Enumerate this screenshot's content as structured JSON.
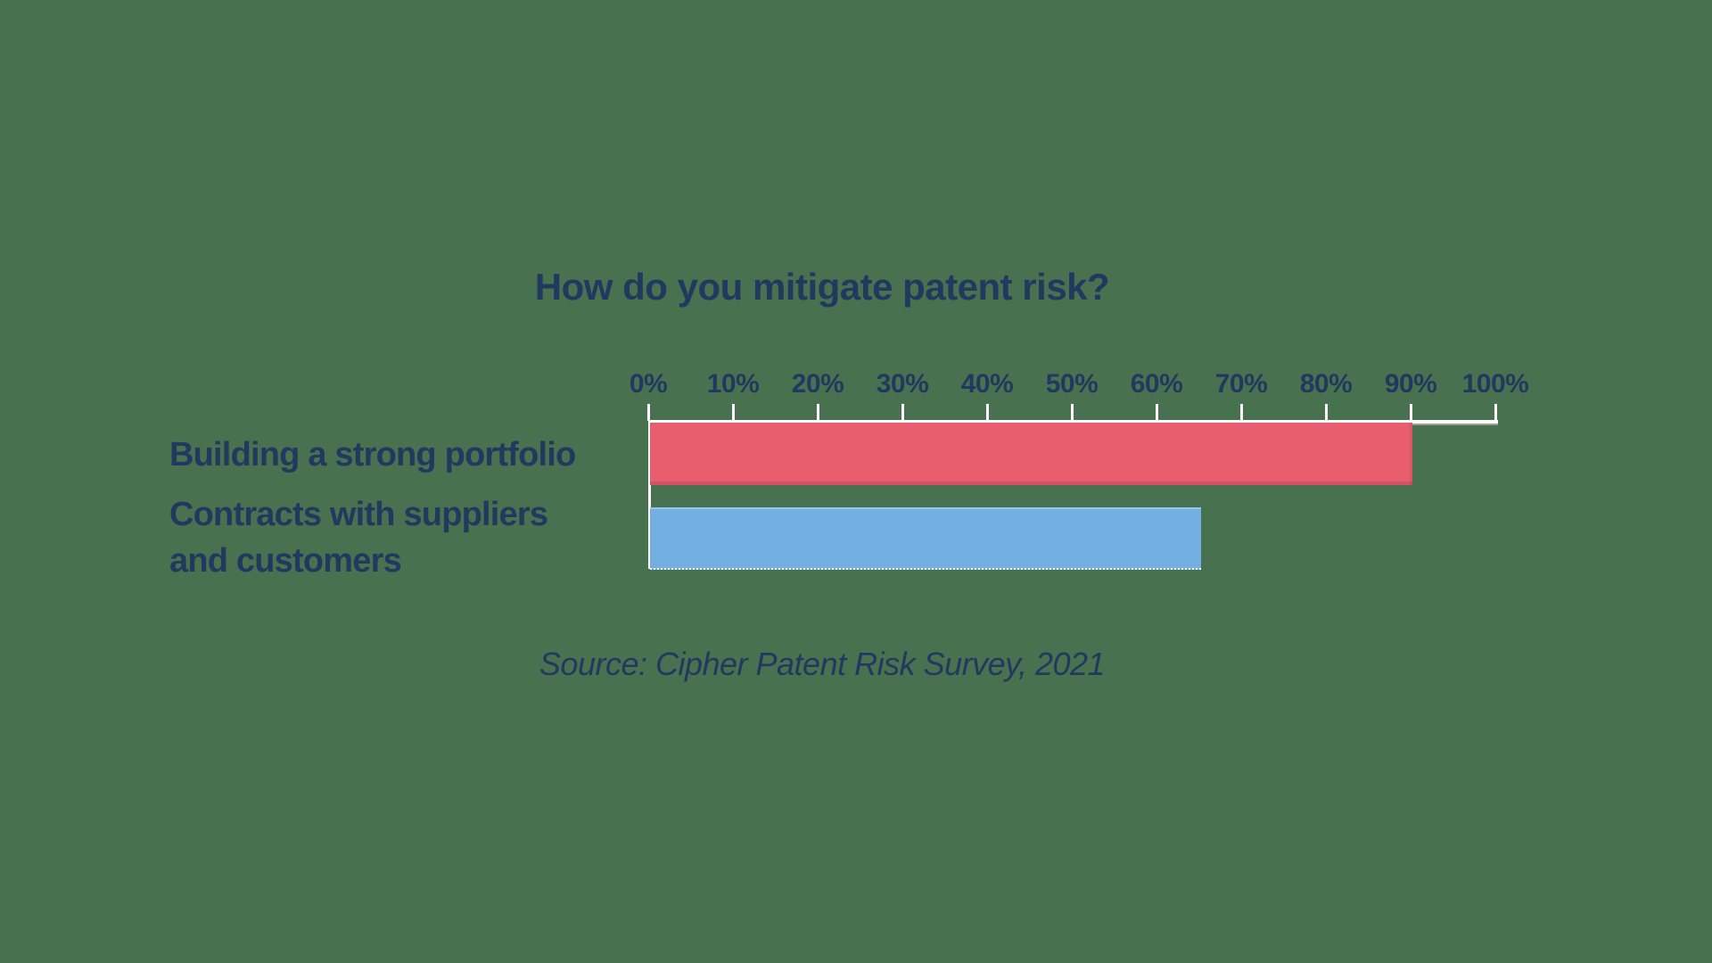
{
  "colors": {
    "background": "#487150",
    "text_navy": "#1e3a5e",
    "axis_white": "#ffffff",
    "bar_red": "#e95e6f",
    "bar_blue": "#74afe1"
  },
  "chart_data": {
    "type": "bar",
    "orientation": "horizontal",
    "title": "How do you mitigate patent risk?",
    "xlabel": "",
    "ylabel": "",
    "xlim": [
      0,
      100
    ],
    "x_tick_labels": [
      "0%",
      "10%",
      "20%",
      "30%",
      "40%",
      "50%",
      "60%",
      "70%",
      "80%",
      "90%",
      "100%"
    ],
    "grid": false,
    "legend": false,
    "categories": [
      "Building a strong portfolio",
      "Contracts with suppliers and customers"
    ],
    "values": [
      90,
      65
    ],
    "unit": "%",
    "rows": [
      {
        "label_lines": [
          "Building a strong portfolio"
        ],
        "value": 90,
        "color": "#e95e6f"
      },
      {
        "label_lines": [
          "Contracts with suppliers",
          "and customers"
        ],
        "value": 65,
        "color": "#74afe1"
      }
    ],
    "annotation": "Source: Cipher Patent Risk Survey, 2021"
  }
}
